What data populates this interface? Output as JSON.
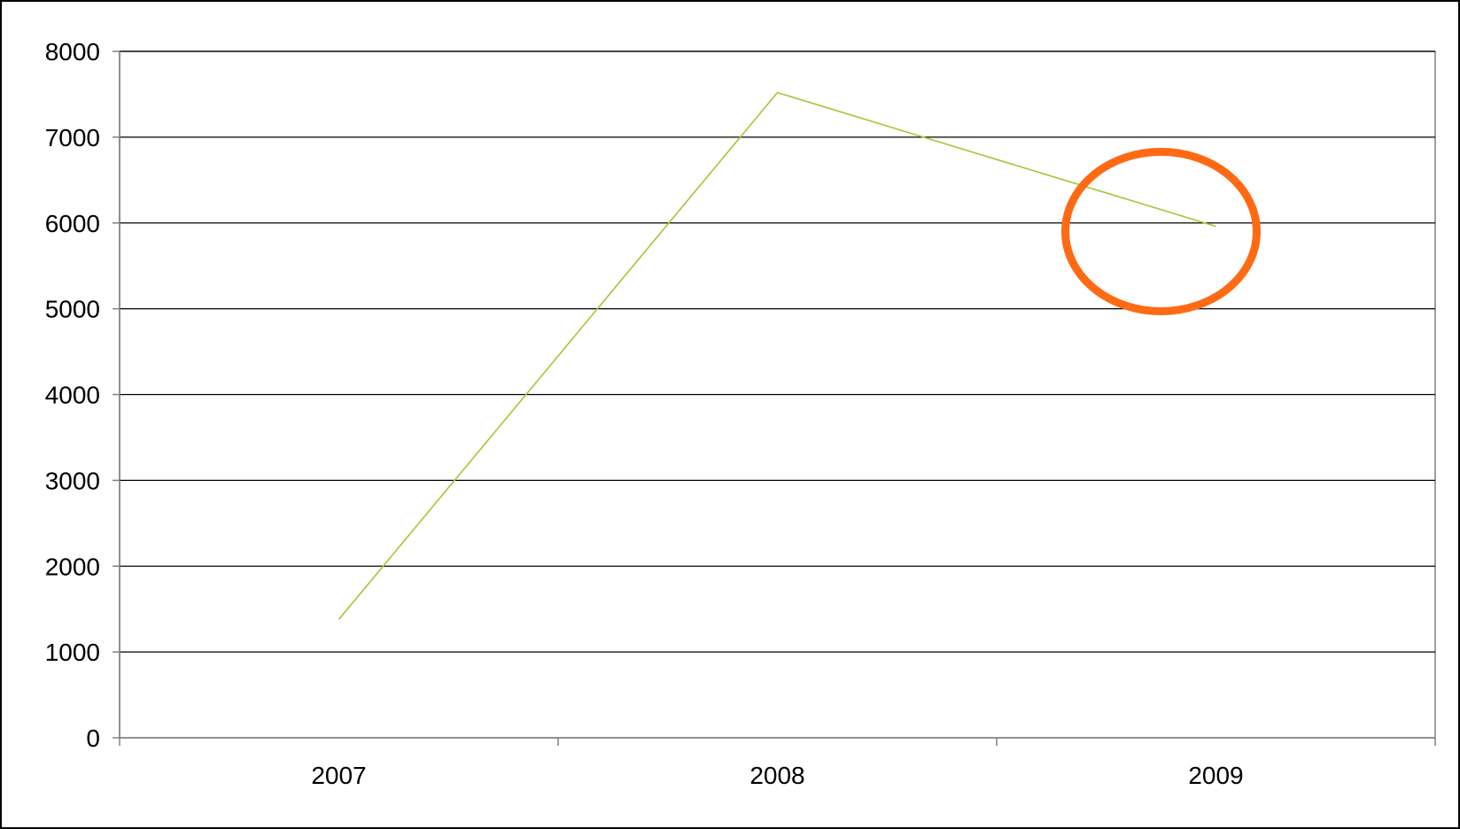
{
  "chart_data": {
    "type": "line",
    "categories": [
      "2007",
      "2008",
      "2009"
    ],
    "series": [
      {
        "values": [
          1380,
          7520,
          5960
        ]
      }
    ],
    "ylim": [
      0,
      8000
    ],
    "yticks": [
      "0",
      "1000",
      "2000",
      "3000",
      "4000",
      "5000",
      "6000",
      "7000",
      "8000"
    ],
    "grid": true,
    "legend": "none",
    "highlight": {
      "category": "2009",
      "value": 5900,
      "shape": "ellipse"
    }
  },
  "colors": {
    "line": "#a4c639",
    "grid": "#000000",
    "axis": "#808080",
    "highlight": "#ff6a13",
    "frame": "#000000"
  }
}
